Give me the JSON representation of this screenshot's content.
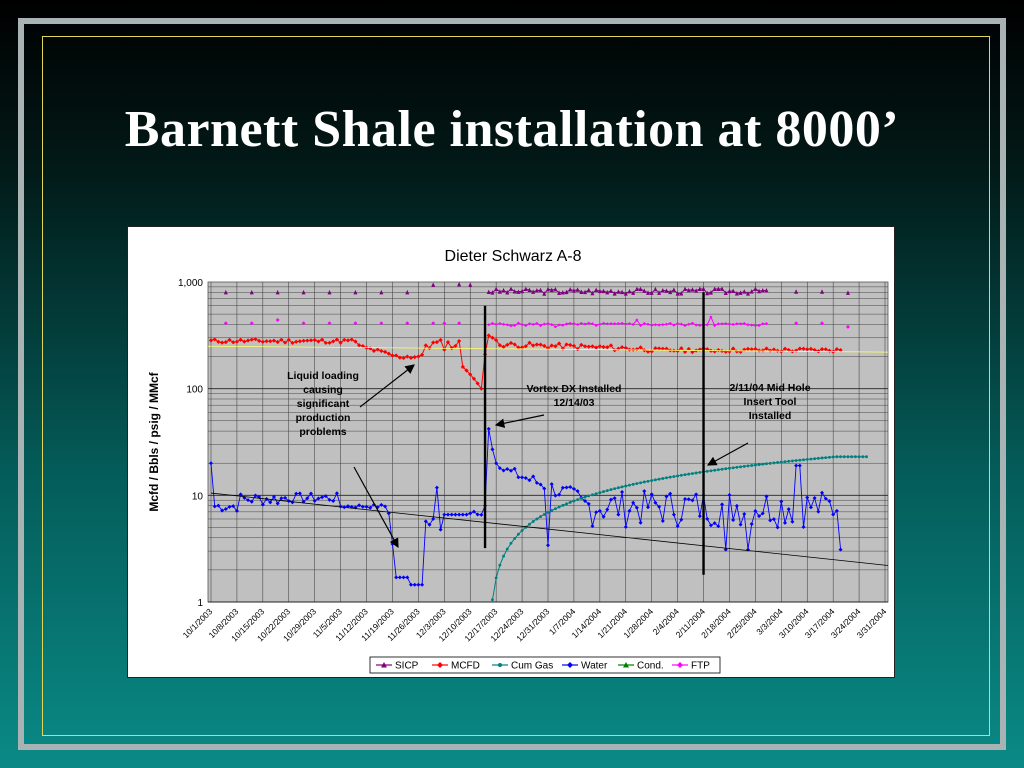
{
  "slide": {
    "title": "Barnett Shale installation at 8000’"
  },
  "chart_data": {
    "type": "line",
    "title": "Dieter Schwarz A-8",
    "ylabel": "Mcfd / Bbls / psig / MMcf",
    "xlabel": "",
    "yscale": "log",
    "ylim": [
      1,
      1000
    ],
    "y_ticks": [
      "1",
      "10",
      "100",
      "1,000"
    ],
    "x_ticks": [
      "10/1/2003",
      "10/8/2003",
      "10/15/2003",
      "10/22/2003",
      "10/29/2003",
      "11/5/2003",
      "11/12/2003",
      "11/19/2003",
      "11/26/2003",
      "12/3/2003",
      "12/10/2003",
      "12/17/2003",
      "12/24/2003",
      "12/31/2003",
      "1/7/2004",
      "1/14/2004",
      "1/21/2004",
      "1/28/2004",
      "2/4/2004",
      "2/11/2004",
      "2/18/2004",
      "2/25/2004",
      "3/3/2004",
      "3/10/2004",
      "3/17/2004",
      "3/24/2004",
      "3/31/2004"
    ],
    "series": [
      {
        "name": "SICP",
        "color": "#800080",
        "marker": "triangle"
      },
      {
        "name": "MCFD",
        "color": "#ff0000",
        "marker": "diamond"
      },
      {
        "name": "Cum Gas",
        "color": "#008080",
        "marker": "circle"
      },
      {
        "name": "Water",
        "color": "#0000ff",
        "marker": "diamond"
      },
      {
        "name": "Cond.",
        "color": "#008000",
        "marker": "triangle"
      },
      {
        "name": "FTP",
        "color": "#ff00ff",
        "marker": "diamond"
      }
    ],
    "annotations": [
      {
        "id": "liquid",
        "lines": [
          "Liquid loading",
          "causing",
          "significant",
          "production",
          "problems"
        ]
      },
      {
        "id": "vortex",
        "lines": [
          "Vortex DX Installed",
          "12/14/03"
        ]
      },
      {
        "id": "midhole",
        "lines": [
          "2/11/04 Mid Hole",
          "Insert Tool",
          "Installed"
        ]
      }
    ],
    "grid": true,
    "legend": "bottom"
  }
}
